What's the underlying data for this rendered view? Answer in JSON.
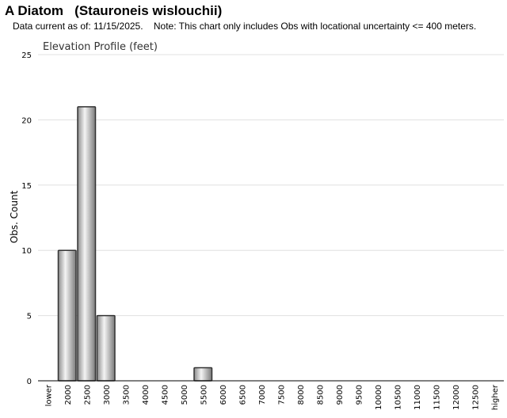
{
  "header": {
    "title": "A Diatom   (Stauroneis wislouchii)",
    "subtitle": "Data current as of: 11/15/2025.    Note: This chart only includes Obs with locational uncertainty <= 400 meters."
  },
  "chart_data": {
    "type": "bar",
    "title": "Elevation Profile (feet)",
    "xlabel": "",
    "ylabel": "Obs. Count",
    "categories": [
      "lower",
      "2000",
      "2500",
      "3000",
      "3500",
      "4000",
      "4500",
      "5000",
      "5500",
      "6000",
      "6500",
      "7000",
      "7500",
      "8000",
      "8500",
      "9000",
      "9500",
      "10000",
      "10500",
      "11000",
      "11500",
      "12000",
      "12500",
      "higher"
    ],
    "values": [
      0,
      10,
      21,
      5,
      0,
      0,
      0,
      0,
      1,
      0,
      0,
      0,
      0,
      0,
      0,
      0,
      0,
      0,
      0,
      0,
      0,
      0,
      0,
      0
    ],
    "ylim": [
      0,
      25
    ],
    "yticks": [
      0,
      5,
      10,
      15,
      20,
      25
    ],
    "grid": true,
    "legend": "none",
    "colors": {
      "bar_edge": "#333333",
      "bar_light": "#f4f4f4",
      "bar_dark": "#8a8a8a",
      "grid": "#e0e0e0",
      "axis": "#000000"
    }
  }
}
